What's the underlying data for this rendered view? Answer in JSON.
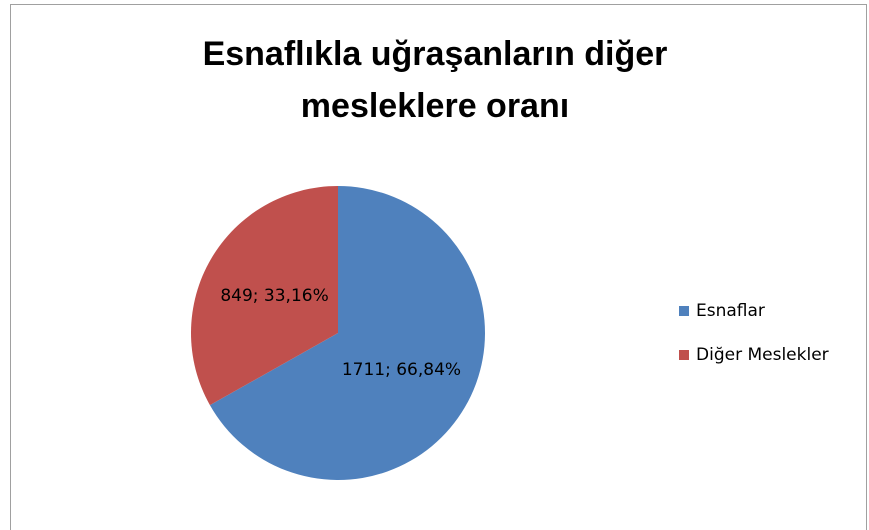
{
  "chart_data": {
    "type": "pie",
    "title": "Esnaflıkla uğraşanların diğer mesleklere oranı",
    "categories": [
      "Esnaflar",
      "Diğer Meslekler"
    ],
    "values": [
      1711,
      849
    ],
    "value_labels": [
      "1711; 66,84%",
      "849; 33,16%"
    ],
    "colors": [
      "#4f81bd",
      "#c0504d"
    ],
    "legend": "right"
  }
}
